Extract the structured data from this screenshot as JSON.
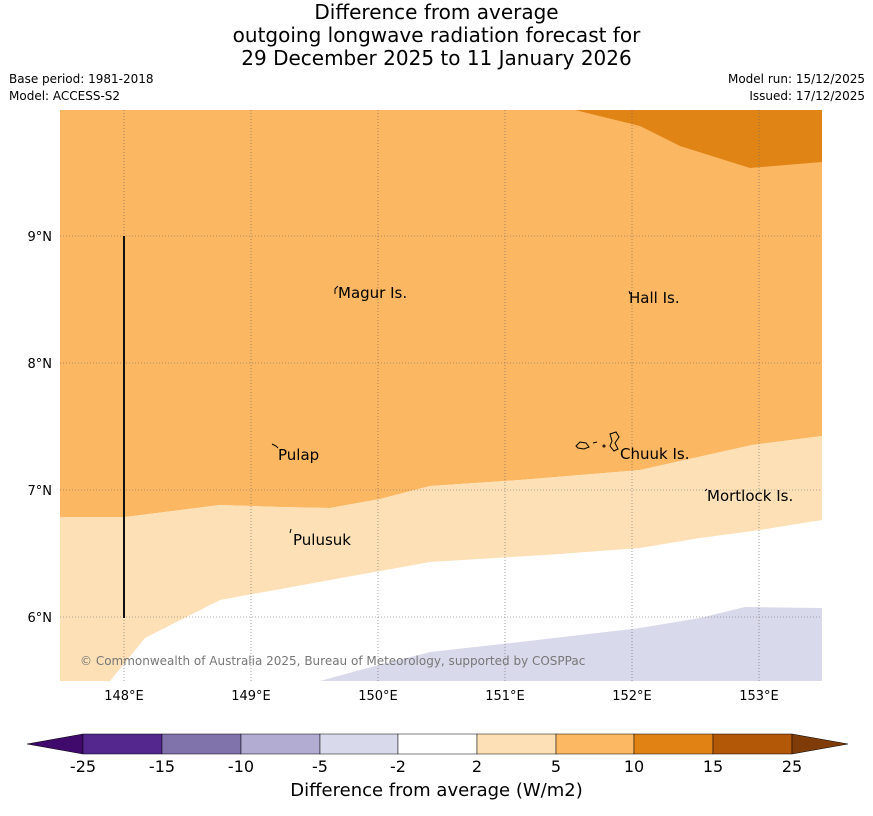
{
  "title": {
    "line1": "Difference from average",
    "line2": "outgoing longwave radiation forecast for",
    "line3": "29 December 2025 to 11 January 2026"
  },
  "meta": {
    "base_period": "Base period: 1981-2018",
    "model": "Model: ACCESS-S2",
    "model_run": "Model run: 15/12/2025",
    "issued": "Issued: 17/12/2025"
  },
  "map": {
    "lon_range": [
      147.5,
      153.5
    ],
    "lat_range": [
      5.5,
      10.0
    ],
    "lat_labels": [
      "9°N",
      "8°N",
      "7°N",
      "6°N"
    ],
    "lon_labels": [
      "148°E",
      "149°E",
      "150°E",
      "151°E",
      "152°E",
      "153°E"
    ],
    "places": [
      {
        "name": "Magur Is.",
        "lon": 149.67,
        "lat": 8.57
      },
      {
        "name": "Hall Is.",
        "lon": 152.0,
        "lat": 8.53
      },
      {
        "name": "Pulap",
        "lon": 149.2,
        "lat": 7.3
      },
      {
        "name": "Chuuk Is.",
        "lon": 151.85,
        "lat": 7.35
      },
      {
        "name": "Mortlock Is.",
        "lon": 152.6,
        "lat": 6.97
      },
      {
        "name": "Pulusuk",
        "lon": 149.3,
        "lat": 6.65
      }
    ],
    "copyright": "© Commonwealth of Australia 2025, Bureau of Meteorology, supported by COSPPac",
    "boundary_line": {
      "lon": 148.0,
      "lat_from": 6.0,
      "lat_to": 9.0
    }
  },
  "colorbar": {
    "title": "Difference from average (W/m2)",
    "tick_labels": [
      "-25",
      "-15",
      "-10",
      "-5",
      "-2",
      "2",
      "5",
      "10",
      "15",
      "25"
    ],
    "colors": [
      "#3f0a6b",
      "#54278f",
      "#8073ac",
      "#b2abd2",
      "#d8daeb",
      "#ffffff",
      "#fee0b6",
      "#fdb863",
      "#e08214",
      "#b35806",
      "#7f3b08"
    ]
  },
  "colors": {
    "band_5_10": "#fbb762",
    "band_2_5": "#fde0b6",
    "band_10_15": "#e08416",
    "band_neg5_neg2": "#d8d9ea",
    "grid": "#555555"
  }
}
